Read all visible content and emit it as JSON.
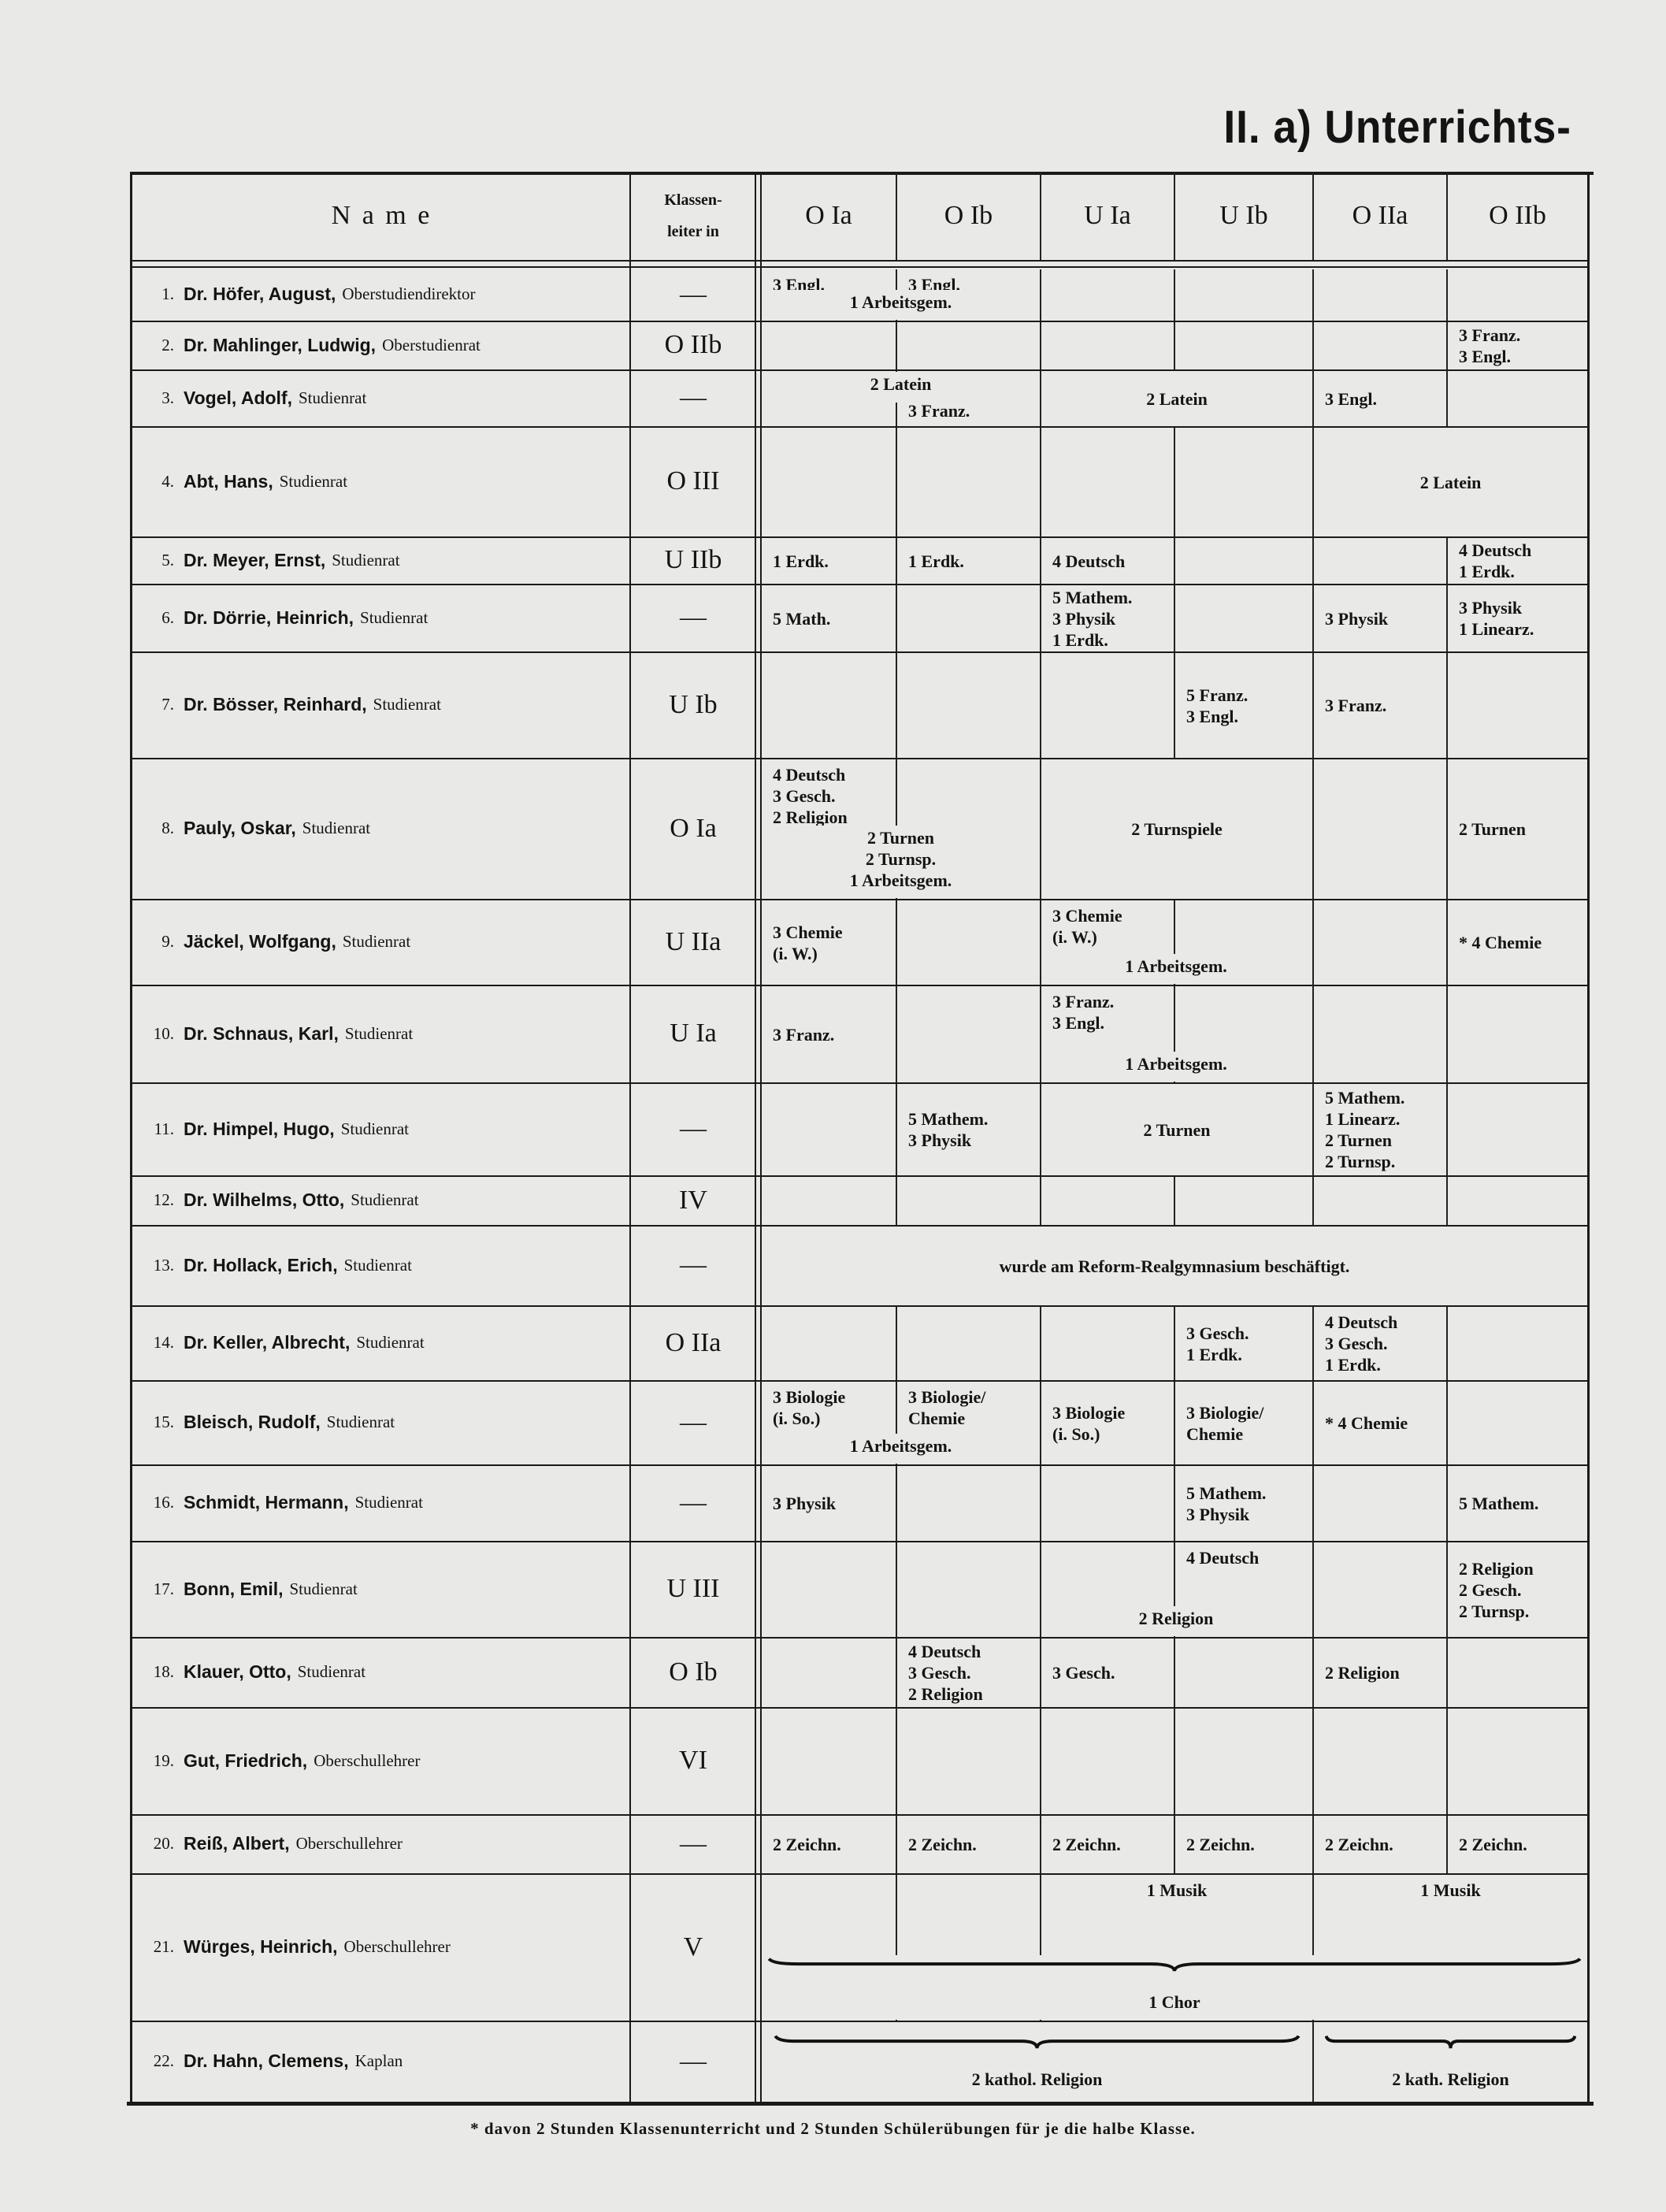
{
  "heading": "II. a) Unterrichts-",
  "header": {
    "name": "N a m e",
    "klassenleiter_line1": "Klassen-",
    "klassenleiter_line2": "leiter in",
    "classes": [
      "O Ia",
      "O Ib",
      "U Ia",
      "U Ib",
      "O IIa",
      "O IIb"
    ]
  },
  "rows": [
    {
      "no": "1.",
      "name": "Dr. Höfer, August,",
      "title": "Oberstudiendirektor",
      "klassenleiter": "—",
      "cells": [
        {
          "classes": [
            "O Ia"
          ],
          "lines": [
            "3 Engl."
          ]
        },
        {
          "classes": [
            "O Ib"
          ],
          "lines": [
            "3 Engl."
          ]
        },
        {
          "classes": [
            "O Ia",
            "O Ib"
          ],
          "lines": [
            "1 Arbeitsgem."
          ]
        }
      ]
    },
    {
      "no": "2.",
      "name": "Dr. Mahlinger, Ludwig,",
      "title": "Oberstudienrat",
      "klassenleiter": "O IIb",
      "cells": [
        {
          "classes": [
            "O IIb"
          ],
          "lines": [
            "3 Franz.",
            "3 Engl."
          ]
        }
      ]
    },
    {
      "no": "3.",
      "name": "Vogel, Adolf,",
      "title": "Studienrat",
      "klassenleiter": "—",
      "cells": [
        {
          "classes": [
            "O Ia",
            "O Ib"
          ],
          "lines": [
            "2 Latein"
          ]
        },
        {
          "classes": [
            "O Ib"
          ],
          "lines": [
            "3 Franz."
          ]
        },
        {
          "classes": [
            "U Ia",
            "U Ib"
          ],
          "lines": [
            "2 Latein"
          ]
        },
        {
          "classes": [
            "O IIa"
          ],
          "lines": [
            "3 Engl."
          ]
        }
      ]
    },
    {
      "no": "4.",
      "name": "Abt, Hans,",
      "title": "Studienrat",
      "klassenleiter": "O III",
      "cells": [
        {
          "classes": [
            "O IIa",
            "O IIb"
          ],
          "lines": [
            "2 Latein"
          ]
        }
      ]
    },
    {
      "no": "5.",
      "name": "Dr. Meyer, Ernst,",
      "title": "Studienrat",
      "klassenleiter": "U IIb",
      "cells": [
        {
          "classes": [
            "O Ia"
          ],
          "lines": [
            "1 Erdk."
          ]
        },
        {
          "classes": [
            "O Ib"
          ],
          "lines": [
            "1 Erdk."
          ]
        },
        {
          "classes": [
            "U Ia"
          ],
          "lines": [
            "4 Deutsch"
          ]
        },
        {
          "classes": [
            "O IIb"
          ],
          "lines": [
            "4 Deutsch",
            "1 Erdk."
          ]
        }
      ]
    },
    {
      "no": "6.",
      "name": "Dr. Dörrie, Heinrich,",
      "title": "Studienrat",
      "klassenleiter": "—",
      "cells": [
        {
          "classes": [
            "O Ia"
          ],
          "lines": [
            "5 Math."
          ]
        },
        {
          "classes": [
            "U Ia"
          ],
          "lines": [
            "5 Mathem.",
            "3 Physik",
            "1 Erdk."
          ]
        },
        {
          "classes": [
            "O IIa"
          ],
          "lines": [
            "3 Physik"
          ]
        },
        {
          "classes": [
            "O IIb"
          ],
          "lines": [
            "3 Physik",
            "1 Linearz."
          ]
        }
      ]
    },
    {
      "no": "7.",
      "name": "Dr. Bösser, Reinhard,",
      "title": "Studienrat",
      "klassenleiter": "U Ib",
      "cells": [
        {
          "classes": [
            "U Ib"
          ],
          "lines": [
            "5 Franz.",
            "3 Engl."
          ]
        },
        {
          "classes": [
            "O IIa"
          ],
          "lines": [
            "3 Franz."
          ]
        }
      ]
    },
    {
      "no": "8.",
      "name": "Pauly, Oskar,",
      "title": "Studienrat",
      "klassenleiter": "O Ia",
      "cells": [
        {
          "classes": [
            "O Ia"
          ],
          "lines": [
            "4 Deutsch",
            "3 Gesch.",
            "2 Religion"
          ]
        },
        {
          "classes": [
            "O Ia",
            "O Ib"
          ],
          "lines": [
            "2 Turnen",
            "2 Turnsp.",
            "1 Arbeitsgem."
          ]
        },
        {
          "classes": [
            "U Ia",
            "U Ib"
          ],
          "lines": [
            "2 Turnspiele"
          ]
        },
        {
          "classes": [
            "O IIb"
          ],
          "lines": [
            "2 Turnen"
          ]
        }
      ]
    },
    {
      "no": "9.",
      "name": "Jäckel, Wolfgang,",
      "title": "Studienrat",
      "klassenleiter": "U IIa",
      "cells": [
        {
          "classes": [
            "O Ia"
          ],
          "lines": [
            "3 Chemie",
            "(i. W.)"
          ]
        },
        {
          "classes": [
            "U Ia"
          ],
          "lines": [
            "3 Chemie",
            "(i. W.)"
          ]
        },
        {
          "classes": [
            "U Ia",
            "U Ib"
          ],
          "lines": [
            "1 Arbeitsgem."
          ]
        },
        {
          "classes": [
            "O IIb"
          ],
          "lines": [
            "* 4 Chemie"
          ]
        }
      ]
    },
    {
      "no": "10.",
      "name": "Dr. Schnaus, Karl,",
      "title": "Studienrat",
      "klassenleiter": "U Ia",
      "cells": [
        {
          "classes": [
            "O Ia"
          ],
          "lines": [
            "3 Franz."
          ]
        },
        {
          "classes": [
            "U Ia"
          ],
          "lines": [
            "3 Franz.",
            "3 Engl."
          ]
        },
        {
          "classes": [
            "U Ia",
            "U Ib"
          ],
          "lines": [
            "1 Arbeitsgem."
          ]
        }
      ]
    },
    {
      "no": "11.",
      "name": "Dr. Himpel, Hugo,",
      "title": "Studienrat",
      "klassenleiter": "—",
      "cells": [
        {
          "classes": [
            "O Ib"
          ],
          "lines": [
            "5 Mathem.",
            "3 Physik"
          ]
        },
        {
          "classes": [
            "U Ia",
            "U Ib"
          ],
          "lines": [
            "2 Turnen"
          ]
        },
        {
          "classes": [
            "O IIa"
          ],
          "lines": [
            "5 Mathem.",
            "1 Linearz.",
            "2 Turnen",
            "2 Turnsp."
          ]
        }
      ]
    },
    {
      "no": "12.",
      "name": "Dr. Wilhelms, Otto,",
      "title": "Studienrat",
      "klassenleiter": "IV",
      "cells": []
    },
    {
      "no": "13.",
      "name": "Dr. Hollack, Erich,",
      "title": "Studienrat",
      "klassenleiter": "—",
      "cells": [
        {
          "classes": [
            "O Ia",
            "O Ib",
            "U Ia",
            "U Ib",
            "O IIa",
            "O IIb"
          ],
          "lines": [
            "wurde am Reform-Realgymnasium beschäftigt."
          ]
        }
      ]
    },
    {
      "no": "14.",
      "name": "Dr. Keller, Albrecht,",
      "title": "Studienrat",
      "klassenleiter": "O IIa",
      "cells": [
        {
          "classes": [
            "U Ib"
          ],
          "lines": [
            "3 Gesch.",
            "1 Erdk."
          ]
        },
        {
          "classes": [
            "O IIa"
          ],
          "lines": [
            "4 Deutsch",
            "3 Gesch.",
            "1 Erdk."
          ]
        }
      ]
    },
    {
      "no": "15.",
      "name": "Bleisch, Rudolf,",
      "title": "Studienrat",
      "klassenleiter": "—",
      "cells": [
        {
          "classes": [
            "O Ia"
          ],
          "lines": [
            "3 Biologie",
            "(i. So.)"
          ]
        },
        {
          "classes": [
            "O Ib"
          ],
          "lines": [
            "3 Biologie/",
            "Chemie"
          ]
        },
        {
          "classes": [
            "O Ia",
            "O Ib"
          ],
          "lines": [
            "1 Arbeitsgem."
          ]
        },
        {
          "classes": [
            "U Ia"
          ],
          "lines": [
            "3 Biologie",
            "(i. So.)"
          ]
        },
        {
          "classes": [
            "U Ib"
          ],
          "lines": [
            "3 Biologie/",
            "Chemie"
          ]
        },
        {
          "classes": [
            "O IIa"
          ],
          "lines": [
            "* 4 Chemie"
          ]
        }
      ]
    },
    {
      "no": "16.",
      "name": "Schmidt, Hermann,",
      "title": "Studienrat",
      "klassenleiter": "—",
      "cells": [
        {
          "classes": [
            "O Ia"
          ],
          "lines": [
            "3 Physik"
          ]
        },
        {
          "classes": [
            "U Ib"
          ],
          "lines": [
            "5 Mathem.",
            "3 Physik"
          ]
        },
        {
          "classes": [
            "O IIb"
          ],
          "lines": [
            "5 Mathem."
          ]
        }
      ]
    },
    {
      "no": "17.",
      "name": "Bonn, Emil,",
      "title": "Studienrat",
      "klassenleiter": "U III",
      "cells": [
        {
          "classes": [
            "U Ib"
          ],
          "lines": [
            "4 Deutsch"
          ]
        },
        {
          "classes": [
            "U Ia",
            "U Ib"
          ],
          "lines": [
            "2 Religion"
          ]
        },
        {
          "classes": [
            "O IIb"
          ],
          "lines": [
            "2 Religion",
            "2 Gesch.",
            "2 Turnsp."
          ]
        }
      ]
    },
    {
      "no": "18.",
      "name": "Klauer, Otto,",
      "title": "Studienrat",
      "klassenleiter": "O Ib",
      "cells": [
        {
          "classes": [
            "O Ib"
          ],
          "lines": [
            "4 Deutsch",
            "3 Gesch.",
            "2 Religion"
          ]
        },
        {
          "classes": [
            "U Ia"
          ],
          "lines": [
            "3 Gesch."
          ]
        },
        {
          "classes": [
            "O IIa"
          ],
          "lines": [
            "2 Religion"
          ]
        }
      ]
    },
    {
      "no": "19.",
      "name": "Gut, Friedrich,",
      "title": "Oberschullehrer",
      "klassenleiter": "VI",
      "cells": []
    },
    {
      "no": "20.",
      "name": "Reiß, Albert,",
      "title": "Oberschullehrer",
      "klassenleiter": "—",
      "cells": [
        {
          "classes": [
            "O Ia"
          ],
          "lines": [
            "2 Zeichn."
          ]
        },
        {
          "classes": [
            "O Ib"
          ],
          "lines": [
            "2 Zeichn."
          ]
        },
        {
          "classes": [
            "U Ia"
          ],
          "lines": [
            "2 Zeichn."
          ]
        },
        {
          "classes": [
            "U Ib"
          ],
          "lines": [
            "2 Zeichn."
          ]
        },
        {
          "classes": [
            "O IIa"
          ],
          "lines": [
            "2 Zeichn."
          ]
        },
        {
          "classes": [
            "O IIb"
          ],
          "lines": [
            "2 Zeichn."
          ]
        }
      ]
    },
    {
      "no": "21.",
      "name": "Würges, Heinrich,",
      "title": "Oberschullehrer",
      "klassenleiter": "V",
      "cells": [
        {
          "classes": [
            "U Ia",
            "U Ib"
          ],
          "lines": [
            "1 Musik"
          ]
        },
        {
          "classes": [
            "O IIa",
            "O IIb"
          ],
          "lines": [
            "1 Musik"
          ]
        },
        {
          "classes": [
            "O Ia",
            "O Ib",
            "U Ia",
            "U Ib",
            "O IIa",
            "O IIb"
          ],
          "lines": [
            "1 Chor"
          ],
          "brace": true
        }
      ]
    },
    {
      "no": "22.",
      "name": "Dr. Hahn, Clemens,",
      "title": "Kaplan",
      "klassenleiter": "—",
      "cells": [
        {
          "classes": [
            "O Ia",
            "O Ib",
            "U Ia",
            "U Ib"
          ],
          "lines": [
            "2 kathol. Religion"
          ],
          "brace": true
        },
        {
          "classes": [
            "O IIa",
            "O IIb"
          ],
          "lines": [
            "2 kath. Religion"
          ],
          "brace": true
        }
      ]
    }
  ],
  "footnote": "* davon 2 Stunden Klassenunterricht und 2 Stunden Schülerübungen für je die halbe Klasse."
}
